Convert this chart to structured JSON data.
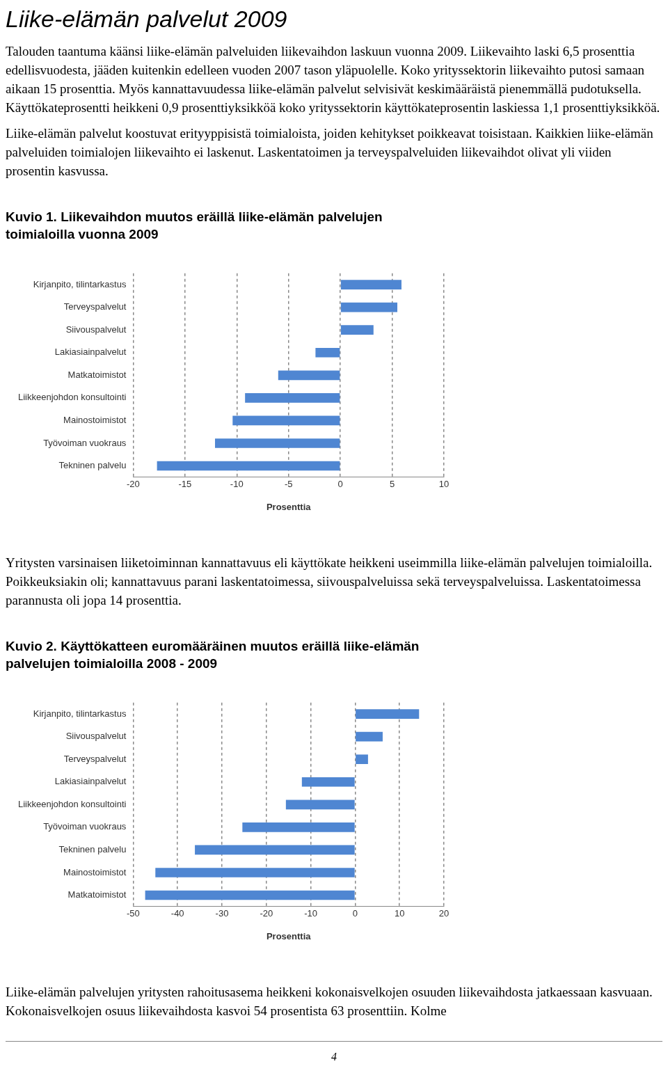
{
  "chart_data": [
    {
      "type": "other",
      "title": "Liike-elämän palvelut 2009",
      "annotations": [
        "Talouden taantuma käänsi liike-elämän palveluiden liikevaihdon laskuun vuonna 2009. Liikevaihto laski 6,5 prosenttia edellisvuodesta, jääden kuitenkin edelleen vuoden 2007 tason yläpuolelle. Koko yrityssektorin liikevaihto putosi samaan aikaan 15 prosenttia. Myös kannattavuudessa liike-elämän palvelut selvisivät keskimääräistä pienemmällä pudotuksella. Käyttökateprosentti heikkeni 0,9 prosenttiyksikköä koko yrityssektorin käyttökateprosentin laskiessa 1,1 prosenttiyksikköä.",
        "Liike-elämän palvelut koostuvat erityyppisistä toimialoista, joiden kehitykset poikkeavat toisistaan. Kaikkien liike-elämän palveluiden toimialojen liikevaihto ei laskenut. Laskentatoimen ja terveyspalveluiden liikevaihdot olivat yli viiden prosentin kasvussa."
      ]
    },
    {
      "type": "bar",
      "orientation": "horizontal",
      "title": "Kuvio 1. Liikevaihdon muutos eräillä liike-elämän palvelujen toimialoilla vuonna 2009",
      "xlabel": "Prosenttia",
      "categories": [
        "Kirjanpito, tilintarkastus",
        "Terveyspalvelut",
        "Siivouspalvelut",
        "Lakiasiainpalvelut",
        "Matkatoimistot",
        "Liikkeenjohdon konsultointi",
        "Mainostoimistot",
        "Työvoiman vuokraus",
        "Tekninen palvelu"
      ],
      "values": [
        5.9,
        5.5,
        3.2,
        -2.4,
        -6.0,
        -9.2,
        -10.4,
        -12.1,
        -17.7
      ],
      "color": "#4f86d2",
      "xlim": [
        -20,
        10
      ],
      "xticks": [
        -20,
        -15,
        -10,
        -5,
        0,
        5,
        10
      ],
      "grid": "x",
      "legend": false
    },
    {
      "type": "other",
      "annotations": [
        "Yritysten varsinaisen liiketoiminnan kannattavuus eli käyttökate heikkeni useimmilla liike-elämän palvelujen toimialoilla. Poikkeuksiakin oli; kannattavuus parani laskentatoimessa, siivouspalveluissa sekä terveyspalveluissa. Laskentatoimessa parannusta oli jopa 14 prosenttia."
      ]
    },
    {
      "type": "bar",
      "orientation": "horizontal",
      "title": "Kuvio 2. Käyttökatteen euromääräinen muutos eräillä liike-elämän palvelujen toimialoilla 2008 - 2009",
      "xlabel": "Prosenttia",
      "categories": [
        "Kirjanpito, tilintarkastus",
        "Siivouspalvelut",
        "Terveyspalvelut",
        "Lakiasiainpalvelut",
        "Liikkeenjohdon konsultointi",
        "Työvoiman vuokraus",
        "Tekninen palvelu",
        "Mainostoimistot",
        "Matkatoimistot"
      ],
      "values": [
        14.4,
        6.2,
        2.9,
        -12.0,
        -15.6,
        -25.4,
        -36.1,
        -45.0,
        -47.3
      ],
      "color": "#4f86d2",
      "xlim": [
        -50,
        20
      ],
      "xticks": [
        -50,
        -40,
        -30,
        -20,
        -10,
        0,
        10,
        20
      ],
      "grid": "x",
      "legend": false
    },
    {
      "type": "other",
      "annotations": [
        "Liike-elämän palvelujen yritysten rahoitusasema heikkeni kokonaisvelkojen osuuden liikevaihdosta jatkaessaan kasvuaan. Kokonaisvelkojen osuus liikevaihdosta kasvoi 54 prosentista 63 prosenttiin. Kolme",
        "4"
      ]
    }
  ]
}
